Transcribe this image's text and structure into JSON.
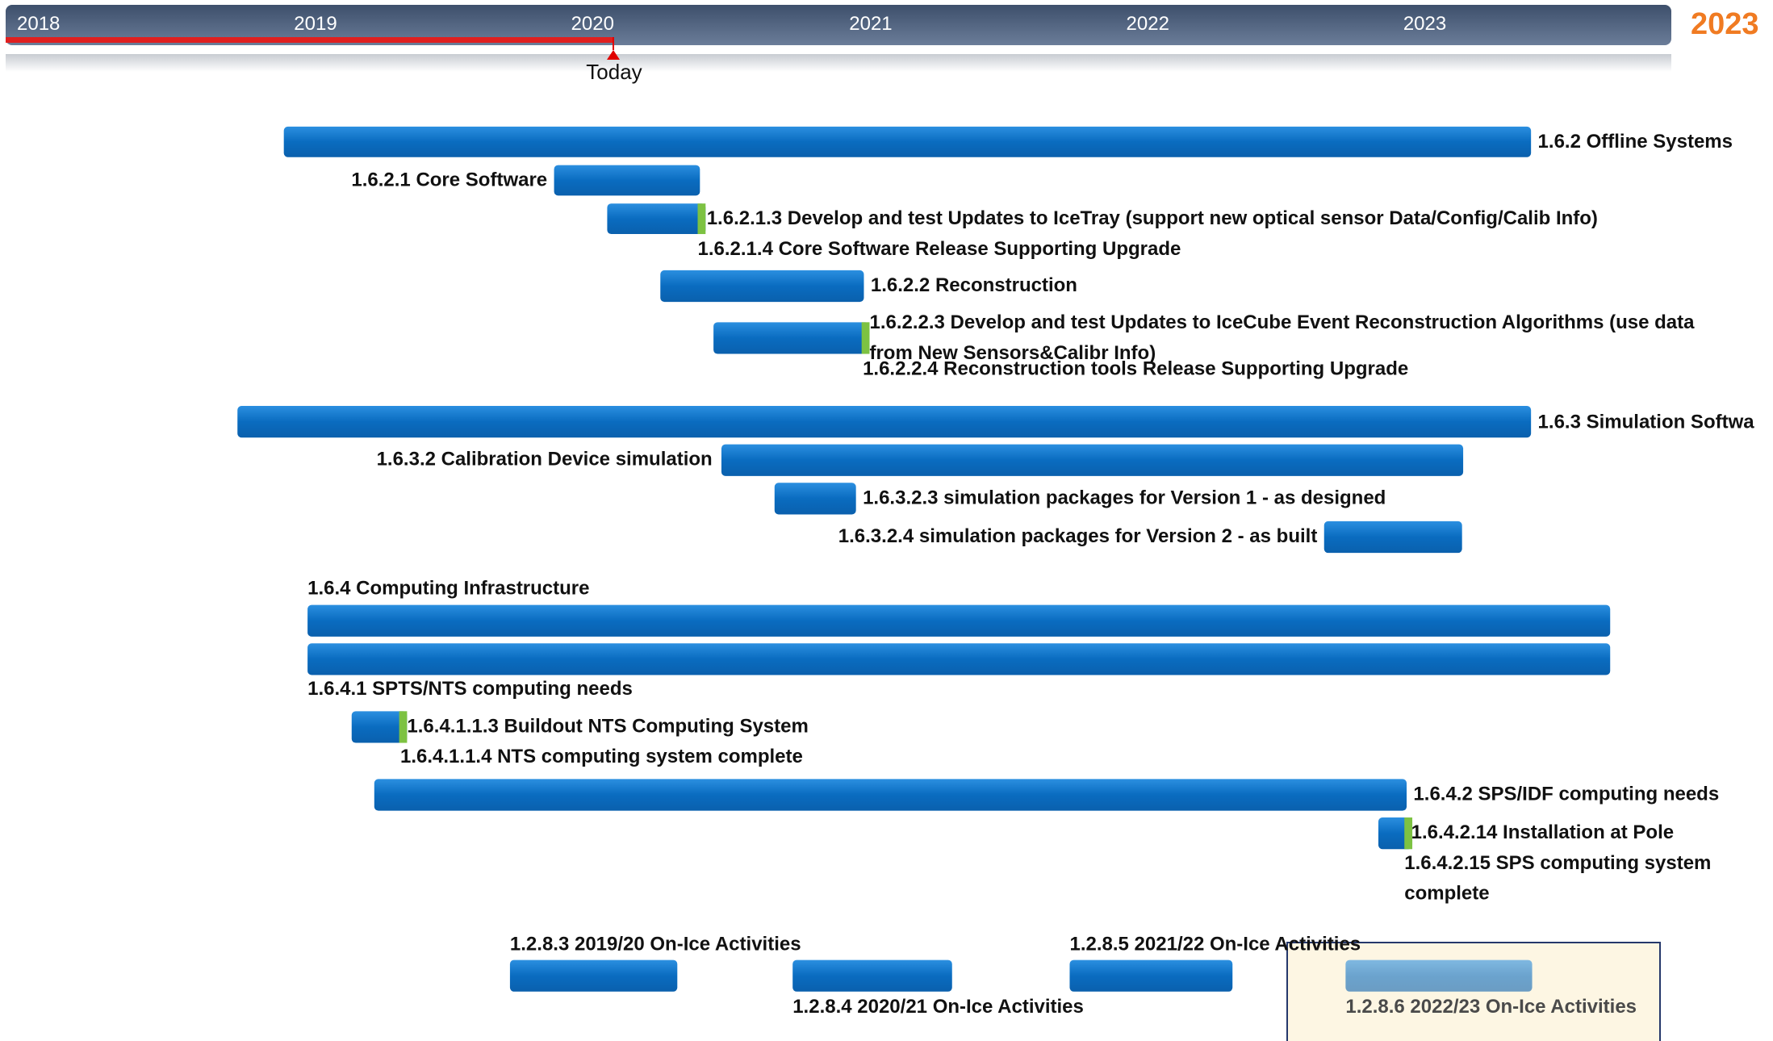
{
  "timeline": {
    "years": [
      "2018",
      "2019",
      "2020",
      "2021",
      "2022",
      "2023"
    ],
    "current_year": "2023",
    "today": "Today"
  },
  "tasks": [
    {
      "label": "1.6.2  Offline Systems"
    },
    {
      "label": "1.6.2.1  Core Software"
    },
    {
      "label": "1.6.2.1.3  Develop and test Updates to IceTray (support new optical sensor Data/Config/Calib Info)"
    },
    {
      "label": "1.6.2.1.4  Core Software Release Supporting Upgrade"
    },
    {
      "label": "1.6.2.2  Reconstruction"
    },
    {
      "label": "1.6.2.2.3  Develop and test Updates to IceCube Event Reconstruction Algorithms (use data"
    },
    {
      "label": "from New Sensors&Calibr Info)"
    },
    {
      "label": "1.6.2.2.4  Reconstruction tools Release Supporting Upgrade"
    },
    {
      "label": "1.6.3  Simulation Softwa"
    },
    {
      "label": "1.6.3.2  Calibration Device simulation"
    },
    {
      "label": "1.6.3.2.3  simulation packages for Version 1 - as designed"
    },
    {
      "label": "1.6.3.2.4  simulation packages for Version 2 - as built"
    },
    {
      "label": "1.6.4  Computing Infrastructure"
    },
    {
      "label": "1.6.4.1  SPTS/NTS computing needs"
    },
    {
      "label": "1.6.4.1.1.3  Buildout NTS Computing System"
    },
    {
      "label": "1.6.4.1.1.4  NTS computing system complete"
    },
    {
      "label": "1.6.4.2  SPS/IDF computing needs"
    },
    {
      "label": "1.6.4.2.14  Installation at Pole"
    },
    {
      "label": "1.6.4.2.15  SPS computing system"
    },
    {
      "label": "complete"
    },
    {
      "label": "1.2.8.3  2019/20 On-Ice Activities"
    },
    {
      "label": "1.2.8.4  2020/21 On-Ice Activities"
    },
    {
      "label": "1.2.8.5  2021/22 On-Ice Activities"
    },
    {
      "label": "1.2.8.6  2022/23 On-Ice Activities"
    }
  ]
}
